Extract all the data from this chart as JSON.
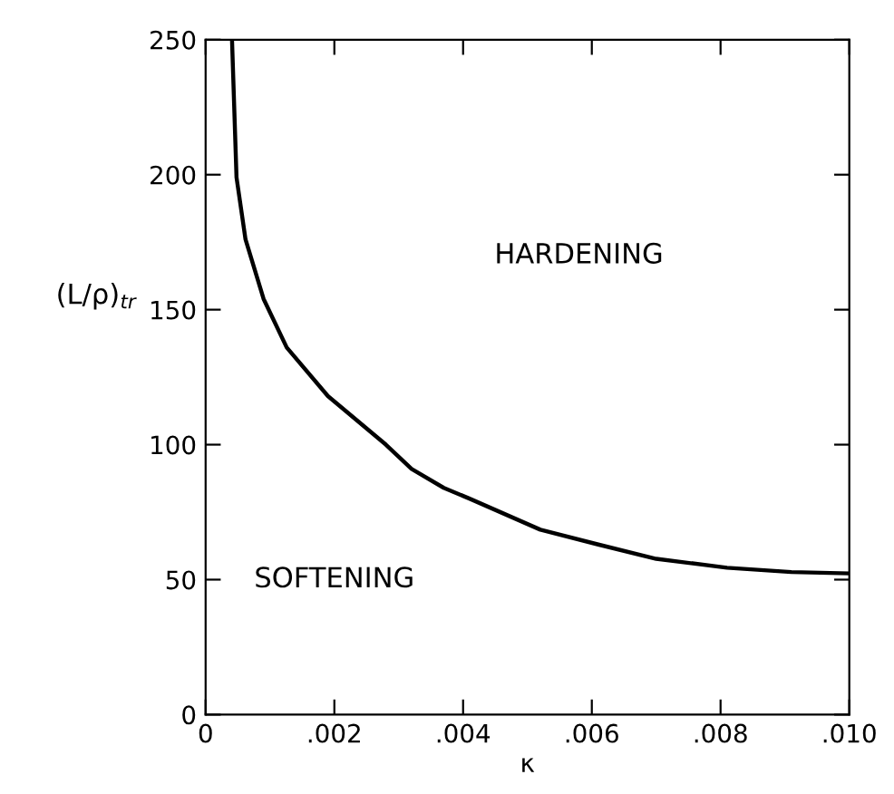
{
  "chart_data": {
    "type": "line",
    "xlabel": "κ",
    "ylabel": "(L/ρ)$_{tr}$",
    "x": [
      0.00041,
      0.00048,
      0.00062,
      0.0009,
      0.00126,
      0.0019,
      0.0028,
      0.0032,
      0.0037,
      0.0041,
      0.0052,
      0.0061,
      0.007,
      0.0081,
      0.0091,
      0.01
    ],
    "series": [
      {
        "color": "#000000",
        "values": [
          250,
          199,
          176,
          154,
          136,
          118,
          100,
          91,
          84,
          80,
          68.5,
          63,
          57.7,
          54.4,
          52.8,
          52.3
        ]
      }
    ],
    "annotations": [
      "HARDENING",
      "SOFTENING"
    ],
    "xlim": [
      0,
      0.01
    ],
    "ylim": [
      0,
      250
    ],
    "xticks": [
      0,
      {
        "value": 0.002,
        "label": ".002"
      },
      {
        "value": 0.004,
        "label": ".004"
      },
      {
        "value": 0.006,
        "label": ".006"
      },
      {
        "value": 0.008,
        "label": ".008"
      },
      {
        "value": 0.01,
        "label": ".010"
      }
    ],
    "yticks": [
      0,
      50,
      100,
      150,
      200,
      250
    ],
    "grid": false,
    "legend": false,
    "marker": "none",
    "line_style": "solid"
  }
}
